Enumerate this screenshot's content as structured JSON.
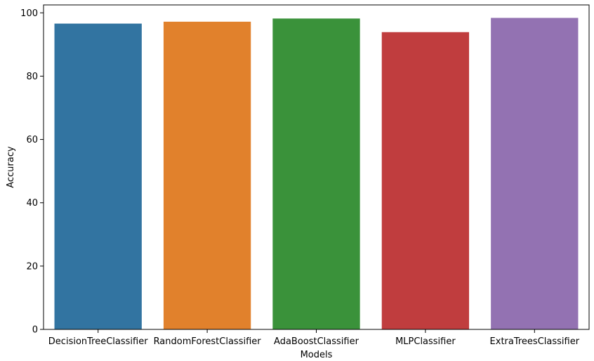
{
  "chart_data": {
    "type": "bar",
    "categories": [
      "DecisionTreeClassifier",
      "RandomForestClassifier",
      "AdaBoostClassifier",
      "MLPClassifier",
      "ExtraTreesClassifier"
    ],
    "values": [
      96.6,
      97.2,
      98.2,
      93.9,
      98.4
    ],
    "colors": [
      "#3274a1",
      "#e1812c",
      "#3a923a",
      "#c03d3e",
      "#9372b2"
    ],
    "xlabel": "Models",
    "ylabel": "Accuracy",
    "ylim": [
      0,
      102.5
    ],
    "yticks": [
      "0",
      "20",
      "40",
      "60",
      "80",
      "100"
    ],
    "grid": false,
    "legend": "none"
  }
}
